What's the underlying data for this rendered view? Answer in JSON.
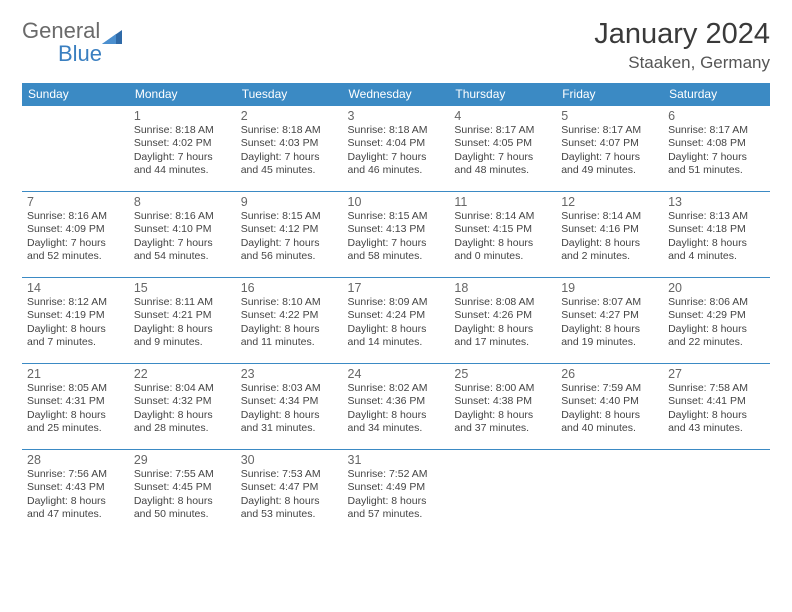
{
  "logo": {
    "text1": "General",
    "text2": "Blue"
  },
  "title": "January 2024",
  "location": "Staaken, Germany",
  "colors": {
    "header_bg": "#3b8ac4",
    "header_text": "#ffffff",
    "border": "#3b8ac4",
    "logo_gray": "#6a6a6a",
    "logo_blue": "#3a7fc0"
  },
  "weekdays": [
    "Sunday",
    "Monday",
    "Tuesday",
    "Wednesday",
    "Thursday",
    "Friday",
    "Saturday"
  ],
  "weeks": [
    [
      null,
      {
        "n": "1",
        "sr": "8:18 AM",
        "ss": "4:02 PM",
        "dl": "7 hours and 44 minutes."
      },
      {
        "n": "2",
        "sr": "8:18 AM",
        "ss": "4:03 PM",
        "dl": "7 hours and 45 minutes."
      },
      {
        "n": "3",
        "sr": "8:18 AM",
        "ss": "4:04 PM",
        "dl": "7 hours and 46 minutes."
      },
      {
        "n": "4",
        "sr": "8:17 AM",
        "ss": "4:05 PM",
        "dl": "7 hours and 48 minutes."
      },
      {
        "n": "5",
        "sr": "8:17 AM",
        "ss": "4:07 PM",
        "dl": "7 hours and 49 minutes."
      },
      {
        "n": "6",
        "sr": "8:17 AM",
        "ss": "4:08 PM",
        "dl": "7 hours and 51 minutes."
      }
    ],
    [
      {
        "n": "7",
        "sr": "8:16 AM",
        "ss": "4:09 PM",
        "dl": "7 hours and 52 minutes."
      },
      {
        "n": "8",
        "sr": "8:16 AM",
        "ss": "4:10 PM",
        "dl": "7 hours and 54 minutes."
      },
      {
        "n": "9",
        "sr": "8:15 AM",
        "ss": "4:12 PM",
        "dl": "7 hours and 56 minutes."
      },
      {
        "n": "10",
        "sr": "8:15 AM",
        "ss": "4:13 PM",
        "dl": "7 hours and 58 minutes."
      },
      {
        "n": "11",
        "sr": "8:14 AM",
        "ss": "4:15 PM",
        "dl": "8 hours and 0 minutes."
      },
      {
        "n": "12",
        "sr": "8:14 AM",
        "ss": "4:16 PM",
        "dl": "8 hours and 2 minutes."
      },
      {
        "n": "13",
        "sr": "8:13 AM",
        "ss": "4:18 PM",
        "dl": "8 hours and 4 minutes."
      }
    ],
    [
      {
        "n": "14",
        "sr": "8:12 AM",
        "ss": "4:19 PM",
        "dl": "8 hours and 7 minutes."
      },
      {
        "n": "15",
        "sr": "8:11 AM",
        "ss": "4:21 PM",
        "dl": "8 hours and 9 minutes."
      },
      {
        "n": "16",
        "sr": "8:10 AM",
        "ss": "4:22 PM",
        "dl": "8 hours and 11 minutes."
      },
      {
        "n": "17",
        "sr": "8:09 AM",
        "ss": "4:24 PM",
        "dl": "8 hours and 14 minutes."
      },
      {
        "n": "18",
        "sr": "8:08 AM",
        "ss": "4:26 PM",
        "dl": "8 hours and 17 minutes."
      },
      {
        "n": "19",
        "sr": "8:07 AM",
        "ss": "4:27 PM",
        "dl": "8 hours and 19 minutes."
      },
      {
        "n": "20",
        "sr": "8:06 AM",
        "ss": "4:29 PM",
        "dl": "8 hours and 22 minutes."
      }
    ],
    [
      {
        "n": "21",
        "sr": "8:05 AM",
        "ss": "4:31 PM",
        "dl": "8 hours and 25 minutes."
      },
      {
        "n": "22",
        "sr": "8:04 AM",
        "ss": "4:32 PM",
        "dl": "8 hours and 28 minutes."
      },
      {
        "n": "23",
        "sr": "8:03 AM",
        "ss": "4:34 PM",
        "dl": "8 hours and 31 minutes."
      },
      {
        "n": "24",
        "sr": "8:02 AM",
        "ss": "4:36 PM",
        "dl": "8 hours and 34 minutes."
      },
      {
        "n": "25",
        "sr": "8:00 AM",
        "ss": "4:38 PM",
        "dl": "8 hours and 37 minutes."
      },
      {
        "n": "26",
        "sr": "7:59 AM",
        "ss": "4:40 PM",
        "dl": "8 hours and 40 minutes."
      },
      {
        "n": "27",
        "sr": "7:58 AM",
        "ss": "4:41 PM",
        "dl": "8 hours and 43 minutes."
      }
    ],
    [
      {
        "n": "28",
        "sr": "7:56 AM",
        "ss": "4:43 PM",
        "dl": "8 hours and 47 minutes."
      },
      {
        "n": "29",
        "sr": "7:55 AM",
        "ss": "4:45 PM",
        "dl": "8 hours and 50 minutes."
      },
      {
        "n": "30",
        "sr": "7:53 AM",
        "ss": "4:47 PM",
        "dl": "8 hours and 53 minutes."
      },
      {
        "n": "31",
        "sr": "7:52 AM",
        "ss": "4:49 PM",
        "dl": "8 hours and 57 minutes."
      },
      null,
      null,
      null
    ]
  ],
  "labels": {
    "sunrise": "Sunrise:",
    "sunset": "Sunset:",
    "daylight": "Daylight:"
  }
}
